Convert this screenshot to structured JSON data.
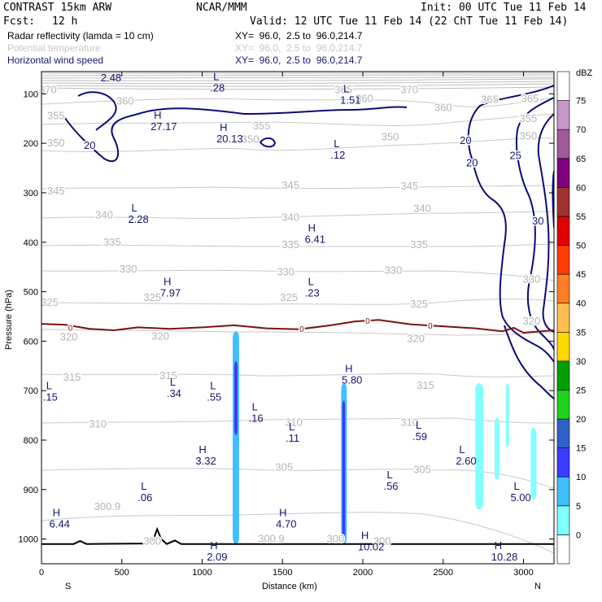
{
  "header": {
    "model": "CONTRAST 15km ARW",
    "org": "NCAR/MMM",
    "init": "Init: 00 UTC Tue 11 Feb 14",
    "fcst_label": "Fcst:",
    "fcst_value": "12 h",
    "valid": "Valid: 12 UTC Tue 11 Feb 14 (22 ChT Tue 11 Feb 14)"
  },
  "fields": [
    {
      "name": "Radar reflectivity (lamda = 10 cm)",
      "xy": "XY=  96.0,  2.5 to  96.0,214.7",
      "color": "#000000"
    },
    {
      "name": "Potential temperature",
      "xy": "XY=  96.0,  2.5 to  96.0,214.7",
      "color": "#c8c8c8"
    },
    {
      "name": "Horizontal wind speed",
      "xy": "XY=  96.0,  2.5 to  96.0,214.7",
      "color": "#15156e"
    }
  ],
  "chart_data": {
    "type": "cross-section",
    "xlabel": "Distance (km)",
    "ylabel": "Pressure (hPa)",
    "xlim": [
      0,
      3190
    ],
    "ylim": [
      1050,
      55
    ],
    "x_ticks": [
      0,
      500,
      1000,
      1500,
      2000,
      2500,
      3000
    ],
    "x_tick_labels": [
      "0",
      "500",
      "1000",
      "1500",
      "2000",
      "2500",
      "3000"
    ],
    "y_ticks": [
      100,
      200,
      300,
      400,
      500,
      600,
      700,
      800,
      900,
      1000
    ],
    "y_tick_labels": [
      "100",
      "200",
      "300",
      "400",
      "500",
      "600",
      "700",
      "800",
      "900",
      "1000"
    ],
    "left_end": "S",
    "right_end": "N",
    "theta_labels": [
      {
        "text": "370",
        "x": 40,
        "p": 92
      },
      {
        "text": "365",
        "x": 1880,
        "p": 92
      },
      {
        "text": "370",
        "x": 2290,
        "p": 92
      },
      {
        "text": "360",
        "x": 520,
        "p": 115
      },
      {
        "text": "360",
        "x": 2010,
        "p": 110
      },
      {
        "text": "360",
        "x": 2500,
        "p": 128
      },
      {
        "text": "365",
        "x": 2790,
        "p": 112
      },
      {
        "text": "365",
        "x": 3040,
        "p": 110
      },
      {
        "text": "355",
        "x": 90,
        "p": 145
      },
      {
        "text": "355",
        "x": 1370,
        "p": 165
      },
      {
        "text": "355",
        "x": 3030,
        "p": 150
      },
      {
        "text": "350",
        "x": 1300,
        "p": 192
      },
      {
        "text": "350",
        "x": 2170,
        "p": 187
      },
      {
        "text": "350",
        "x": 3030,
        "p": 186
      },
      {
        "text": "350",
        "x": 90,
        "p": 200
      },
      {
        "text": "345",
        "x": 90,
        "p": 297
      },
      {
        "text": "345",
        "x": 1550,
        "p": 285
      },
      {
        "text": "345",
        "x": 2290,
        "p": 287
      },
      {
        "text": "340",
        "x": 390,
        "p": 345
      },
      {
        "text": "340",
        "x": 1550,
        "p": 350
      },
      {
        "text": "340",
        "x": 2370,
        "p": 332
      },
      {
        "text": "335",
        "x": 440,
        "p": 400
      },
      {
        "text": "335",
        "x": 1550,
        "p": 405
      },
      {
        "text": "335",
        "x": 2350,
        "p": 405
      },
      {
        "text": "330",
        "x": 540,
        "p": 455
      },
      {
        "text": "330",
        "x": 1520,
        "p": 460
      },
      {
        "text": "330",
        "x": 2190,
        "p": 457
      },
      {
        "text": "330",
        "x": 3050,
        "p": 475
      },
      {
        "text": "325",
        "x": 50,
        "p": 522
      },
      {
        "text": "325",
        "x": 690,
        "p": 512
      },
      {
        "text": "325",
        "x": 1540,
        "p": 512
      },
      {
        "text": "325",
        "x": 2350,
        "p": 525
      },
      {
        "text": "320",
        "x": 170,
        "p": 592
      },
      {
        "text": "320",
        "x": 740,
        "p": 590
      },
      {
        "text": "320",
        "x": 2330,
        "p": 595
      },
      {
        "text": "320",
        "x": 3050,
        "p": 560
      },
      {
        "text": "315",
        "x": 190,
        "p": 673
      },
      {
        "text": "315",
        "x": 790,
        "p": 670
      },
      {
        "text": "315",
        "x": 2390,
        "p": 690
      },
      {
        "text": "310",
        "x": 350,
        "p": 768
      },
      {
        "text": "310",
        "x": 1570,
        "p": 765
      },
      {
        "text": "310",
        "x": 2290,
        "p": 765
      },
      {
        "text": "305",
        "x": 1510,
        "p": 855
      },
      {
        "text": "305",
        "x": 2370,
        "p": 860
      },
      {
        "text": "300.9",
        "x": 410,
        "p": 935
      },
      {
        "text": "300.9",
        "x": 1430,
        "p": 1000
      },
      {
        "text": "300",
        "x": 690,
        "p": 1005
      },
      {
        "text": "300",
        "x": 1830,
        "p": 1000
      },
      {
        "text": "300",
        "x": 2120,
        "p": 1005
      }
    ],
    "wind_contour_labels": [
      {
        "text": "20",
        "x": 300,
        "p": 205
      },
      {
        "text": "20",
        "x": 2640,
        "p": 195
      },
      {
        "text": "20",
        "x": 2680,
        "p": 240
      },
      {
        "text": "25",
        "x": 2950,
        "p": 225
      },
      {
        "text": "30",
        "x": 3090,
        "p": 358
      }
    ],
    "hl_markers": [
      {
        "letter": "L",
        "value": "2.48",
        "x": 450,
        "p": 52
      },
      {
        "letter": "L",
        "value": ".28",
        "x": 1130,
        "p": 72
      },
      {
        "letter": "L",
        "value": "1.51",
        "x": 1940,
        "p": 97
      },
      {
        "letter": "H",
        "value": "27.17",
        "x": 760,
        "p": 150
      },
      {
        "letter": "H",
        "value": "20.13",
        "x": 1170,
        "p": 175
      },
      {
        "letter": "L",
        "value": ".12",
        "x": 1880,
        "p": 208
      },
      {
        "letter": "L",
        "value": "2.28",
        "x": 620,
        "p": 338
      },
      {
        "letter": "H",
        "value": "6.41",
        "x": 1720,
        "p": 378
      },
      {
        "letter": "H",
        "value": "7.97",
        "x": 820,
        "p": 487
      },
      {
        "letter": "L",
        "value": ".23",
        "x": 1720,
        "p": 487
      },
      {
        "letter": "H",
        "value": "5.80",
        "x": 1950,
        "p": 663
      },
      {
        "letter": "L",
        "value": ".15",
        "x": 90,
        "p": 697
      },
      {
        "letter": "L",
        "value": ".34",
        "x": 860,
        "p": 690
      },
      {
        "letter": "L",
        "value": ".55",
        "x": 1110,
        "p": 697
      },
      {
        "letter": "L",
        "value": ".16",
        "x": 1370,
        "p": 740
      },
      {
        "letter": "L",
        "value": ".11",
        "x": 1600,
        "p": 780
      },
      {
        "letter": "L",
        "value": ".59",
        "x": 2390,
        "p": 777
      },
      {
        "letter": "H",
        "value": "3.32",
        "x": 1040,
        "p": 826
      },
      {
        "letter": "L",
        "value": "2.60",
        "x": 2660,
        "p": 826
      },
      {
        "letter": "L",
        "value": ".56",
        "x": 2210,
        "p": 877
      },
      {
        "letter": "L",
        "value": ".06",
        "x": 680,
        "p": 900
      },
      {
        "letter": "L",
        "value": "5.00",
        "x": 3000,
        "p": 900
      },
      {
        "letter": "H",
        "value": "6.44",
        "x": 130,
        "p": 954
      },
      {
        "letter": "H",
        "value": "4.70",
        "x": 1540,
        "p": 954
      },
      {
        "letter": "H",
        "value": "10.02",
        "x": 2050,
        "p": 1000
      },
      {
        "letter": "H",
        "value": "2.09",
        "x": 1110,
        "p": 1020
      },
      {
        "letter": "H",
        "value": "10.28",
        "x": 2880,
        "p": 1020
      }
    ],
    "freezing_level_label": "0",
    "freezing_level": [
      {
        "x": 0,
        "p": 565
      },
      {
        "x": 150,
        "p": 567
      },
      {
        "x": 300,
        "p": 575
      },
      {
        "x": 450,
        "p": 578
      },
      {
        "x": 600,
        "p": 572
      },
      {
        "x": 800,
        "p": 575
      },
      {
        "x": 1000,
        "p": 572
      },
      {
        "x": 1200,
        "p": 568
      },
      {
        "x": 1400,
        "p": 574
      },
      {
        "x": 1600,
        "p": 576
      },
      {
        "x": 1800,
        "p": 568
      },
      {
        "x": 1950,
        "p": 560
      },
      {
        "x": 2100,
        "p": 557
      },
      {
        "x": 2300,
        "p": 566
      },
      {
        "x": 2500,
        "p": 570
      },
      {
        "x": 2700,
        "p": 574
      },
      {
        "x": 2870,
        "p": 580
      },
      {
        "x": 2940,
        "p": 573
      },
      {
        "x": 3000,
        "p": 583
      },
      {
        "x": 3190,
        "p": 578
      }
    ],
    "freezing_zero_marks": [
      {
        "x": 180,
        "p": 572
      },
      {
        "x": 1620,
        "p": 575
      },
      {
        "x": 2030,
        "p": 558
      },
      {
        "x": 2420,
        "p": 568
      }
    ],
    "terrain": [
      {
        "x": 0,
        "p": 1010
      },
      {
        "x": 200,
        "p": 1010
      },
      {
        "x": 240,
        "p": 1004
      },
      {
        "x": 280,
        "p": 1010
      },
      {
        "x": 660,
        "p": 1009
      },
      {
        "x": 700,
        "p": 998
      },
      {
        "x": 720,
        "p": 980
      },
      {
        "x": 745,
        "p": 1000
      },
      {
        "x": 780,
        "p": 1010
      },
      {
        "x": 830,
        "p": 1003
      },
      {
        "x": 870,
        "p": 1010
      },
      {
        "x": 3190,
        "p": 1010
      }
    ],
    "reflectivity_cells": [
      {
        "x0": 1190,
        "x1": 1230,
        "ptop": 580,
        "pbot": 1010,
        "dbz": 10
      },
      {
        "x0": 1200,
        "x1": 1220,
        "ptop": 640,
        "pbot": 790,
        "dbz": 15
      },
      {
        "x0": 1865,
        "x1": 1900,
        "ptop": 685,
        "pbot": 1010,
        "dbz": 10
      },
      {
        "x0": 1872,
        "x1": 1890,
        "ptop": 720,
        "pbot": 1000,
        "dbz": 15
      },
      {
        "x0": 2700,
        "x1": 2750,
        "ptop": 685,
        "pbot": 940,
        "dbz": 5
      },
      {
        "x0": 2820,
        "x1": 2850,
        "ptop": 755,
        "pbot": 880,
        "dbz": 5
      },
      {
        "x0": 2890,
        "x1": 2910,
        "ptop": 685,
        "pbot": 815,
        "dbz": 5
      },
      {
        "x0": 3045,
        "x1": 3080,
        "ptop": 775,
        "pbot": 920,
        "dbz": 5
      }
    ],
    "colorbar": {
      "unit": "dBZ",
      "levels": [
        "0",
        "5",
        "10",
        "15",
        "20",
        "25",
        "30",
        "35",
        "40",
        "45",
        "50",
        "55",
        "60",
        "65",
        "70",
        "75"
      ],
      "colors": [
        "#ffffff",
        "#80ffff",
        "#40bfff",
        "#3b3bff",
        "#2f62c8",
        "#1ed21e",
        "#00a000",
        "#ffd700",
        "#ffbe50",
        "#ff7f26",
        "#ff3c00",
        "#e10000",
        "#a03232",
        "#800080",
        "#a05a9b",
        "#c896c8",
        "#ffffff"
      ]
    }
  }
}
